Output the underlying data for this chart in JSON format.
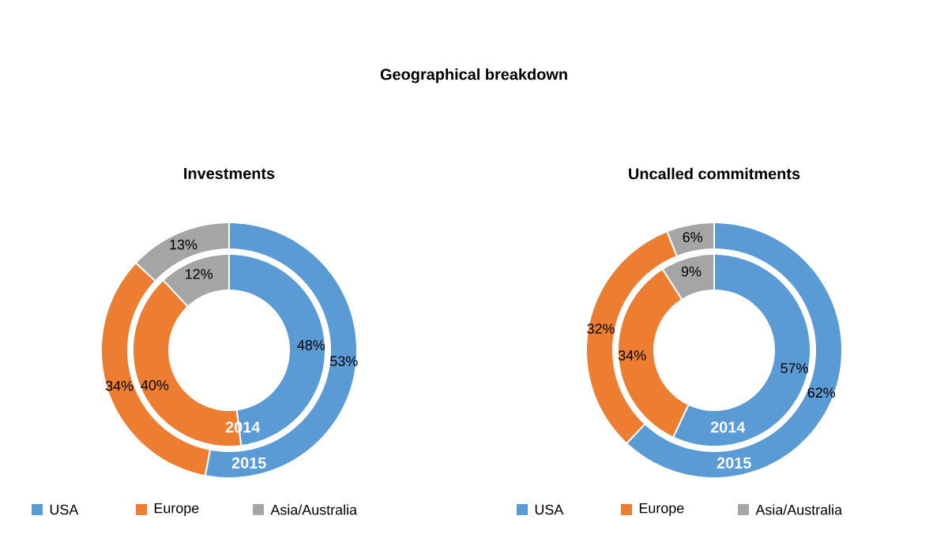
{
  "chart_data": [
    {
      "type": "other",
      "title": "Geographical breakdown"
    },
    {
      "type": "donut",
      "title": "Investments",
      "categories": [
        "USA",
        "Europe",
        "Asia/Australia"
      ],
      "colors": [
        "#5b9bd5",
        "#ed7d31",
        "#a5a5a5"
      ],
      "series": [
        {
          "name": "2014",
          "values": [
            48,
            40,
            12
          ],
          "value_labels": [
            "48%",
            "40%",
            "12%"
          ]
        },
        {
          "name": "2015",
          "values": [
            53,
            34,
            13
          ],
          "value_labels": [
            "53%",
            "34%",
            "13%"
          ]
        }
      ],
      "legend": "bottom"
    },
    {
      "type": "donut",
      "title": "Uncalled commitments",
      "categories": [
        "USA",
        "Europe",
        "Asia/Australia"
      ],
      "colors": [
        "#5b9bd5",
        "#ed7d31",
        "#a5a5a5"
      ],
      "series": [
        {
          "name": "2014",
          "values": [
            57,
            34,
            9
          ],
          "value_labels": [
            "57%",
            "34%",
            "9%"
          ]
        },
        {
          "name": "2015",
          "values": [
            62,
            32,
            6
          ],
          "value_labels": [
            "62%",
            "32%",
            "6%"
          ]
        }
      ],
      "legend": "bottom"
    }
  ]
}
